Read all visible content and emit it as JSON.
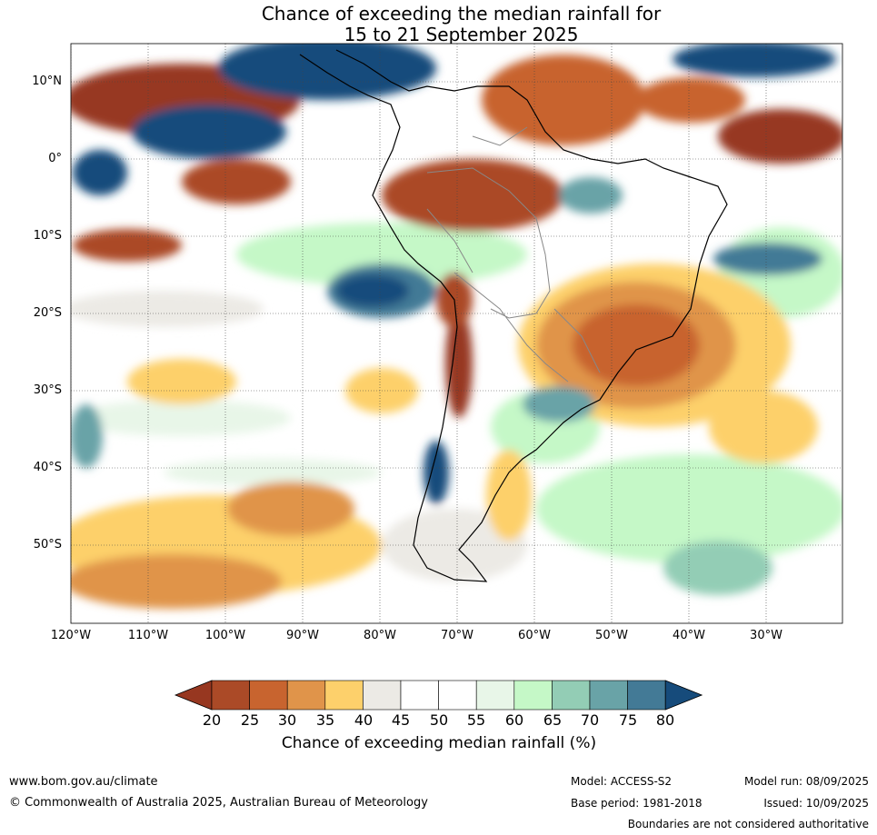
{
  "title": {
    "line1": "Chance of exceeding the median rainfall for",
    "line2": "15 to 21 September 2025"
  },
  "map": {
    "lat_labels": [
      "10°N",
      "0°",
      "10°S",
      "20°S",
      "30°S",
      "40°S",
      "50°S"
    ],
    "lon_labels": [
      "120°W",
      "110°W",
      "100°W",
      "90°W",
      "80°W",
      "70°W",
      "60°W",
      "50°W",
      "40°W",
      "30°W"
    ],
    "lat_range": [
      -60,
      15
    ],
    "lon_range": [
      -120,
      -20
    ]
  },
  "colorbar": {
    "ticks": [
      "20",
      "25",
      "30",
      "35",
      "40",
      "45",
      "50",
      "55",
      "60",
      "65",
      "70",
      "75",
      "80"
    ],
    "colors": [
      "#973720",
      "#ab4a27",
      "#c8642f",
      "#e0944a",
      "#fdd06b",
      "#eceae5",
      "#ffffff",
      "#ffffff",
      "#e8f6e8",
      "#c5f8c7",
      "#93cdb5",
      "#69a3a7",
      "#437a96",
      "#164b7b"
    ],
    "label": "Chance of exceeding median rainfall (%)"
  },
  "footer": {
    "website": "www.bom.gov.au/climate",
    "copyright": "© Commonwealth of Australia 2025, Australian Bureau of Meteorology",
    "model": "Model: ACCESS-S2",
    "base_period": "Base period: 1981-2018",
    "model_run": "Model run: 08/09/2025",
    "issued": "Issued: 10/09/2025",
    "disclaimer": "Boundaries are not considered authoritative"
  }
}
